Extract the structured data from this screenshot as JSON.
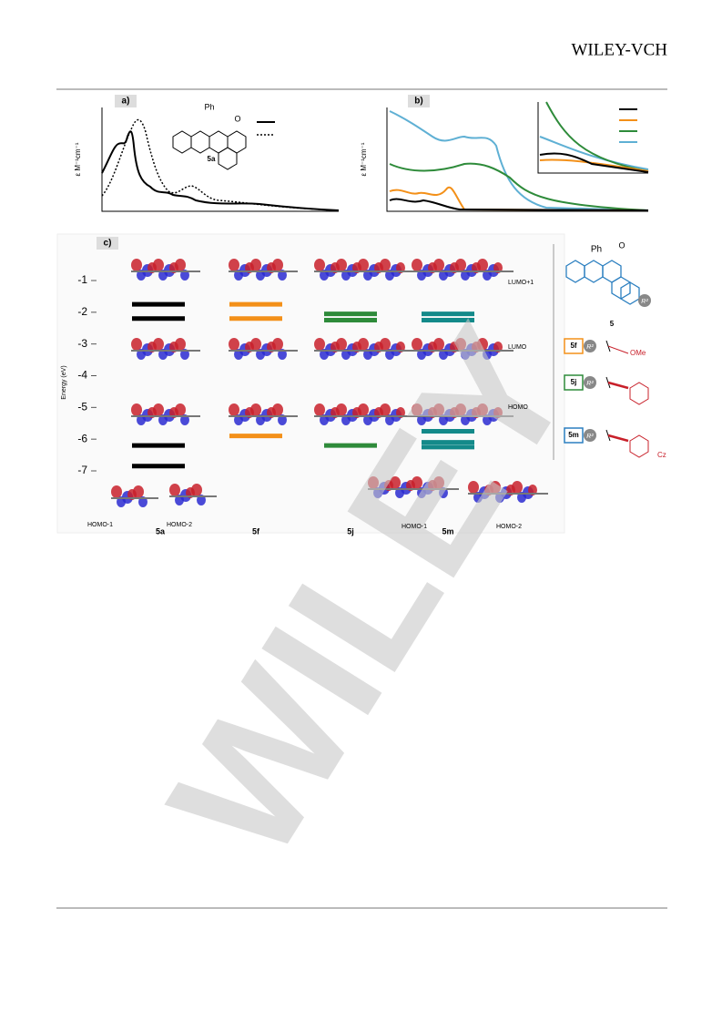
{
  "header": {
    "publisher": "WILEY-VCH"
  },
  "figure": {
    "panel_a": {
      "label": "a)",
      "substituent": "Ph",
      "oxygen": "O",
      "compound": "5a",
      "y_label": "ε M⁻¹cm⁻¹"
    },
    "panel_b": {
      "label": "b)",
      "y_label": "ε M⁻¹cm⁻¹"
    },
    "panel_c": {
      "label": "c)",
      "y_label": "Energy (eV)",
      "ylim": [
        -0.5,
        -7.5
      ],
      "yticks": [
        -1,
        -2,
        -3,
        -4,
        -5,
        -6,
        -7
      ],
      "orbital_labels": [
        "LUMO+1",
        "LUMO",
        "HOMO"
      ],
      "compounds": [
        {
          "name": "5a",
          "color": "#000000",
          "levels": [
            -1.75,
            -2.2,
            -6.2,
            -6.85
          ]
        },
        {
          "name": "5f",
          "color": "#f39019",
          "levels": [
            -1.75,
            -2.2,
            -5.9
          ]
        },
        {
          "name": "5j",
          "color": "#2e8b3a",
          "levels": [
            -2.05,
            -2.25,
            -6.2
          ]
        },
        {
          "name": "5m",
          "color": "#138a8a",
          "levels": [
            -2.05,
            -2.25,
            -5.75,
            -6.1,
            -6.25
          ]
        }
      ],
      "sub_labels": [
        "HOMO-1",
        "HOMO-2",
        "HOMO-1",
        "HOMO-2"
      ]
    },
    "legend": {
      "core_label": "5",
      "substituent": "Ph",
      "oxygen": "O",
      "r_group": "R²",
      "entries": [
        {
          "name": "5f",
          "color": "#f39019",
          "group": "OMe"
        },
        {
          "name": "5j",
          "color": "#2e8b3a"
        },
        {
          "name": "5m",
          "color": "#2b7fc0",
          "group": "Cz"
        }
      ]
    }
  },
  "watermark": "WILEY"
}
